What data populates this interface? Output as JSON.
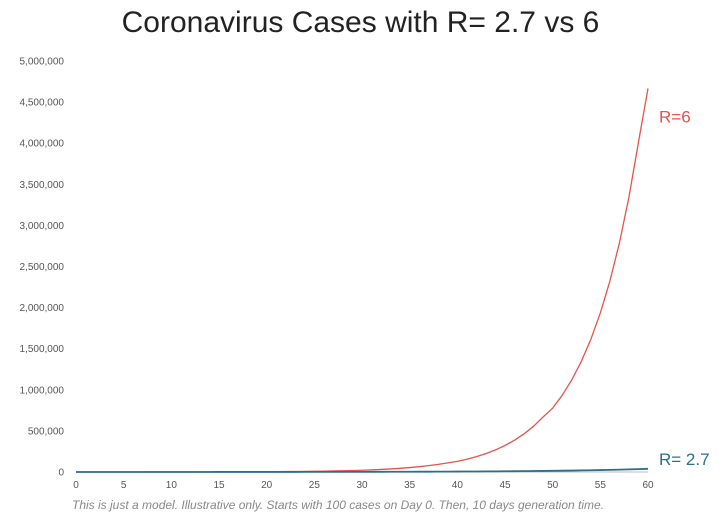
{
  "chart_data": {
    "type": "line",
    "title": "Coronavirus Cases with R= 2.7 vs 6",
    "xlabel": "",
    "ylabel": "",
    "xlim": [
      0,
      60
    ],
    "ylim": [
      0,
      5000000
    ],
    "x_ticks": [
      "0",
      "5",
      "10",
      "15",
      "20",
      "25",
      "30",
      "35",
      "40",
      "45",
      "50",
      "55",
      "60"
    ],
    "y_ticks": [
      "0",
      "500,000",
      "1,000,000",
      "1,500,000",
      "2,000,000",
      "2,500,000",
      "3,000,000",
      "3,500,000",
      "4,000,000",
      "4,500,000",
      "5,000,000"
    ],
    "grid": false,
    "legend": "none",
    "x": [
      0,
      1,
      2,
      3,
      4,
      5,
      6,
      7,
      8,
      9,
      10,
      11,
      12,
      13,
      14,
      15,
      16,
      17,
      18,
      19,
      20,
      21,
      22,
      23,
      24,
      25,
      26,
      27,
      28,
      29,
      30,
      31,
      32,
      33,
      34,
      35,
      36,
      37,
      38,
      39,
      40,
      41,
      42,
      43,
      44,
      45,
      46,
      47,
      48,
      49,
      50,
      51,
      52,
      53,
      54,
      55,
      56,
      57,
      58,
      59,
      60
    ],
    "series": [
      {
        "name": "R=6",
        "color": "#e5534b",
        "values": [
          100,
          120,
          144,
          172,
          207,
          249,
          298,
          358,
          430,
          516,
          600,
          720,
          864,
          1037,
          1244,
          1493,
          1792,
          2150,
          2580,
          3096,
          3600,
          4320,
          5184,
          6221,
          7465,
          8958,
          10749,
          12899,
          15479,
          18575,
          21600,
          25920,
          31104,
          37325,
          44790,
          53748,
          64497,
          77397,
          92876,
          111451,
          129600,
          155520,
          186624,
          223949,
          268739,
          322486,
          386984,
          464380,
          557256,
          668708,
          777600,
          933120,
          1119744,
          1343693,
          1612431,
          1934918,
          2321901,
          2786281,
          3343538,
          4012245,
          4665600
        ]
      },
      {
        "name": "R= 2.7",
        "color": "#2a6f8f",
        "values": [
          100,
          110,
          121,
          135,
          149,
          164,
          181,
          200,
          221,
          244,
          270,
          298,
          329,
          364,
          402,
          444,
          490,
          541,
          598,
          660,
          729,
          805,
          889,
          982,
          1085,
          1198,
          1323,
          1461,
          1614,
          1783,
          1968,
          2174,
          2401,
          2652,
          2929,
          3235,
          3573,
          3946,
          4358,
          4813,
          5314,
          5870,
          6483,
          7160,
          7908,
          8733,
          9645,
          10652,
          11764,
          12993,
          14349,
          15848,
          17502,
          19330,
          21348,
          23577,
          26039,
          28757,
          31761,
          35077,
          38742
        ]
      }
    ]
  },
  "footnote": "This is just a model. Illustrative only. Starts with 100 cases on Day 0. Then, 10 days generation time."
}
